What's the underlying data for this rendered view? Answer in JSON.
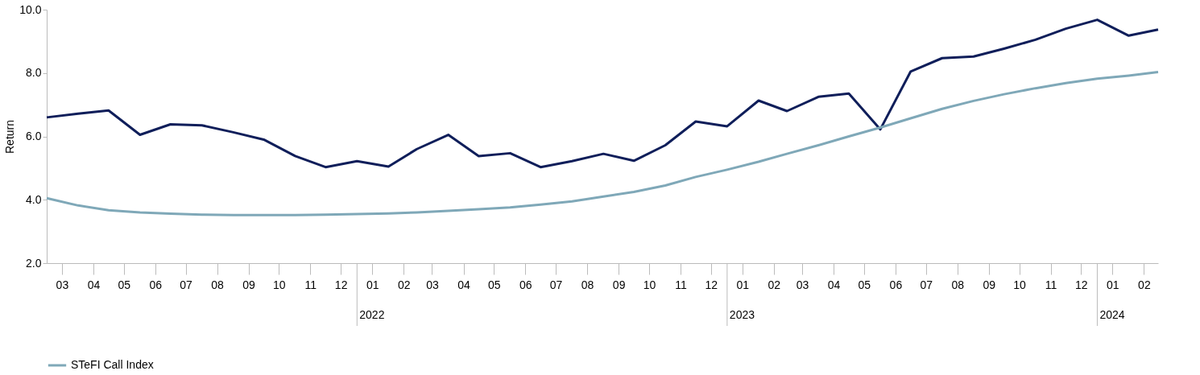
{
  "chart_data": {
    "type": "line",
    "ylabel": "Return",
    "x": [
      "2021-03-01",
      "2021-04-01",
      "2021-05-01",
      "2021-06-01",
      "2021-07-01",
      "2021-08-01",
      "2021-09-01",
      "2021-10-01",
      "2021-11-01",
      "2021-12-01",
      "2022-01-01",
      "2022-02-01",
      "2022-03-01",
      "2022-04-01",
      "2022-05-01",
      "2022-06-01",
      "2022-07-01",
      "2022-08-01",
      "2022-09-01",
      "2022-10-01",
      "2022-11-01",
      "2022-12-01",
      "2023-01-01",
      "2023-02-01",
      "2023-03-01",
      "2023-04-01",
      "2023-05-01",
      "2023-06-01",
      "2023-07-01",
      "2023-08-01",
      "2023-09-01",
      "2023-10-01",
      "2023-11-01",
      "2023-12-01",
      "2024-01-01",
      "2024-02-01",
      "2024-03-01"
    ],
    "series": [
      {
        "color": "#0f1e5a",
        "values": [
          6.6,
          6.72,
          6.82,
          6.05,
          6.38,
          6.35,
          6.13,
          5.9,
          5.38,
          5.03,
          5.22,
          5.05,
          5.6,
          6.05,
          5.38,
          5.47,
          5.03,
          5.22,
          5.45,
          5.23,
          5.72,
          6.47,
          6.32,
          7.13,
          6.8,
          7.25,
          7.35,
          6.22,
          8.05,
          8.47,
          8.52,
          8.77,
          9.05,
          9.4,
          9.68,
          9.18,
          9.37
        ]
      },
      {
        "name": "STeFI Call Index",
        "color": "#7fa8b8",
        "values": [
          4.05,
          3.82,
          3.67,
          3.6,
          3.56,
          3.53,
          3.52,
          3.52,
          3.52,
          3.53,
          3.55,
          3.57,
          3.6,
          3.65,
          3.7,
          3.76,
          3.85,
          3.95,
          4.1,
          4.25,
          4.45,
          4.72,
          4.95,
          5.2,
          5.45,
          5.72,
          6.0,
          6.28,
          6.57,
          6.87,
          7.12,
          7.33,
          7.52,
          7.68,
          7.82,
          7.92,
          8.03
        ]
      }
    ],
    "xlim": [
      "2021-03-01",
      "2024-03-01"
    ],
    "xticks": [
      {
        "value": "2021-03-16",
        "label": "03"
      },
      {
        "value": "2021-04-16",
        "label": "04"
      },
      {
        "value": "2021-05-16",
        "label": "05"
      },
      {
        "value": "2021-06-16",
        "label": "06"
      },
      {
        "value": "2021-07-16",
        "label": "07"
      },
      {
        "value": "2021-08-16",
        "label": "08"
      },
      {
        "value": "2021-09-16",
        "label": "09"
      },
      {
        "value": "2021-10-16",
        "label": "10"
      },
      {
        "value": "2021-11-16",
        "label": "11"
      },
      {
        "value": "2021-12-16",
        "label": "12"
      },
      {
        "value": "2022-01-16",
        "label": "01"
      },
      {
        "value": "2022-02-16",
        "label": "02"
      },
      {
        "value": "2022-03-16",
        "label": "03"
      },
      {
        "value": "2022-04-16",
        "label": "04"
      },
      {
        "value": "2022-05-16",
        "label": "05"
      },
      {
        "value": "2022-06-16",
        "label": "06"
      },
      {
        "value": "2022-07-16",
        "label": "07"
      },
      {
        "value": "2022-08-16",
        "label": "08"
      },
      {
        "value": "2022-09-16",
        "label": "09"
      },
      {
        "value": "2022-10-16",
        "label": "10"
      },
      {
        "value": "2022-11-16",
        "label": "11"
      },
      {
        "value": "2022-12-16",
        "label": "12"
      },
      {
        "value": "2023-01-16",
        "label": "01"
      },
      {
        "value": "2023-02-16",
        "label": "02"
      },
      {
        "value": "2023-03-16",
        "label": "03"
      },
      {
        "value": "2023-04-16",
        "label": "04"
      },
      {
        "value": "2023-05-16",
        "label": "05"
      },
      {
        "value": "2023-06-16",
        "label": "06"
      },
      {
        "value": "2023-07-16",
        "label": "07"
      },
      {
        "value": "2023-08-16",
        "label": "08"
      },
      {
        "value": "2023-09-16",
        "label": "09"
      },
      {
        "value": "2023-10-16",
        "label": "10"
      },
      {
        "value": "2023-11-16",
        "label": "11"
      },
      {
        "value": "2023-12-16",
        "label": "12"
      },
      {
        "value": "2024-01-16",
        "label": "01"
      },
      {
        "value": "2024-02-16",
        "label": "02"
      }
    ],
    "ylim": [
      2,
      10
    ],
    "yticks": [
      {
        "value": 2,
        "label": "2.0"
      },
      {
        "value": 4,
        "label": "4.0"
      },
      {
        "value": 6,
        "label": "6.0"
      },
      {
        "value": 8,
        "label": "8.0"
      },
      {
        "value": 10,
        "label": "10.0"
      }
    ],
    "annotations": [
      "2022",
      "2023",
      "2024"
    ],
    "grid": false,
    "legend": "bottom",
    "marker": "none",
    "line_style": "solid"
  }
}
